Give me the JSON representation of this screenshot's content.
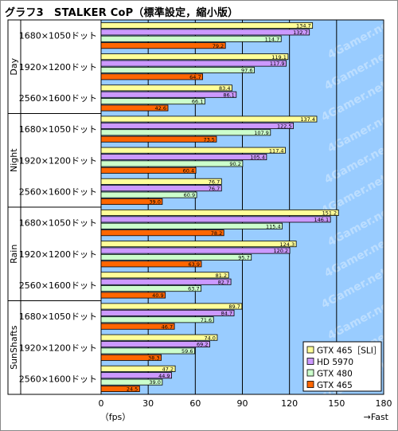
{
  "chart_data": {
    "type": "bar",
    "orientation": "horizontal",
    "title": "グラフ3　STALKER CoP（標準設定，縮小版）",
    "xlabel_left": "（fps）",
    "xlabel_right": "→Fast",
    "xlim": [
      0,
      180
    ],
    "xticks": [
      "0",
      "30",
      "60",
      "90",
      "120",
      "150",
      "180"
    ],
    "grid": true,
    "legend_position": "bottom-right",
    "groups": [
      {
        "name": "Day",
        "rows": [
          {
            "label": "1680×1050ドット",
            "values": [
              134.7,
              132.7,
              114.7,
              79.2
            ]
          },
          {
            "label": "1920×1200ドット",
            "values": [
              119.1,
              117.9,
              97.6,
              64.7
            ]
          },
          {
            "label": "2560×1600ドット",
            "values": [
              83.4,
              86.1,
              66.1,
              42.6
            ]
          }
        ]
      },
      {
        "name": "Night",
        "rows": [
          {
            "label": "1680×1050ドット",
            "values": [
              137.4,
              122.5,
              107.9,
              73.5
            ]
          },
          {
            "label": "1920×1200ドット",
            "values": [
              117.4,
              105.4,
              90.2,
              60.4
            ]
          },
          {
            "label": "2560×1600ドット",
            "values": [
              76.7,
              76.7,
              60.9,
              39.0
            ]
          }
        ]
      },
      {
        "name": "Rain",
        "rows": [
          {
            "label": "1680×1050ドット",
            "values": [
              151.2,
              146.1,
              115.4,
              78.2
            ]
          },
          {
            "label": "1920×1200ドット",
            "values": [
              124.3,
              120.2,
              95.7,
              63.9
            ]
          },
          {
            "label": "2560×1600ドット",
            "values": [
              81.2,
              82.7,
              63.7,
              40.9
            ]
          }
        ]
      },
      {
        "name": "SunShafts",
        "rows": [
          {
            "label": "1680×1050ドット",
            "values": [
              89.7,
              84.7,
              71.6,
              46.7
            ]
          },
          {
            "label": "1920×1200ドット",
            "values": [
              74.0,
              69.2,
              59.6,
              38.3
            ]
          },
          {
            "label": "2560×1600ドット",
            "values": [
              47.2,
              44.9,
              39.0,
              24.5
            ]
          }
        ]
      }
    ],
    "series": [
      {
        "name": "GTX 465［SLI］",
        "color": "#ffff99"
      },
      {
        "name": "HD 5970",
        "color": "#cc99ff"
      },
      {
        "name": "GTX 480",
        "color": "#ccffcc"
      },
      {
        "name": "GTX 465",
        "color": "#ff6600"
      }
    ],
    "plot_background": "#99ccff",
    "watermark": "4Gamer.net"
  }
}
